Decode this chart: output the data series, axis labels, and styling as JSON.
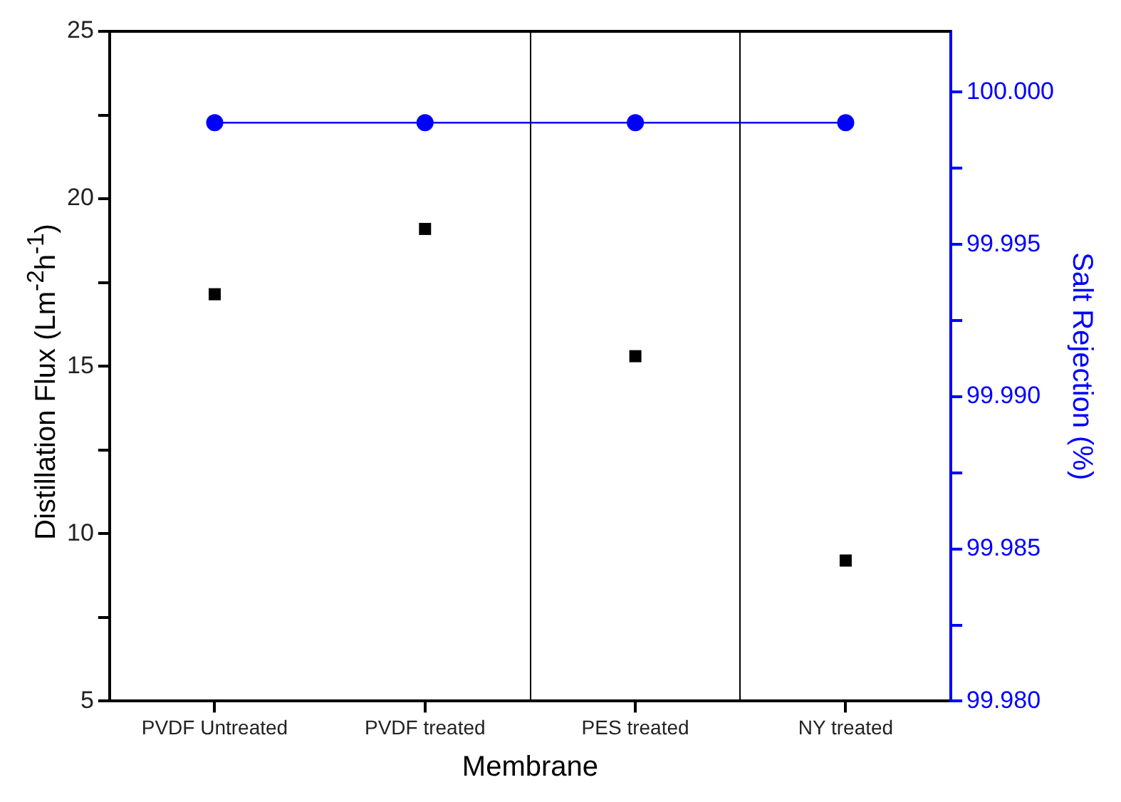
{
  "chart_data": {
    "type": "line",
    "xlabel": "Membrane",
    "ylabel": "Distillation Flux (Lm$^{-2}$h$^{-1}$)",
    "y2label": "Salt Rejection (%)",
    "categories": [
      "PVDF Untreated",
      "PVDF treated",
      "PES treated",
      "NY treated"
    ],
    "series": [
      {
        "type": "scatter",
        "color": "#000000",
        "marker": "square",
        "values": [
          17.15,
          19.1,
          15.3,
          9.2
        ]
      },
      {
        "type": "line",
        "color": "#0000ff",
        "marker": "circle",
        "axis": "y2",
        "values": [
          99.999,
          99.999,
          99.999,
          99.999
        ]
      }
    ],
    "ylim": [
      5,
      25
    ],
    "yticks": [
      5,
      {
        "value": 7.5,
        "label": null
      },
      10,
      {
        "value": 12.5,
        "label": null
      },
      15,
      {
        "value": 17.5,
        "label": null
      },
      20,
      {
        "value": 22.5,
        "label": null
      },
      25
    ],
    "y2lim": [
      99.98,
      100.002
    ],
    "y2ticks": [
      "99.980",
      {
        "value": 99.9825,
        "label": null
      },
      {
        "value": 99.985,
        "label": "99.985"
      },
      {
        "value": 99.9875,
        "label": null
      },
      {
        "value": 99.99,
        "label": "99.990"
      },
      {
        "value": 99.9925,
        "label": null
      },
      {
        "value": 99.995,
        "label": "99.995"
      },
      {
        "value": 99.9975,
        "label": null
      },
      {
        "value": 100,
        "label": "100.000"
      }
    ],
    "grid": false,
    "legend": false
  }
}
